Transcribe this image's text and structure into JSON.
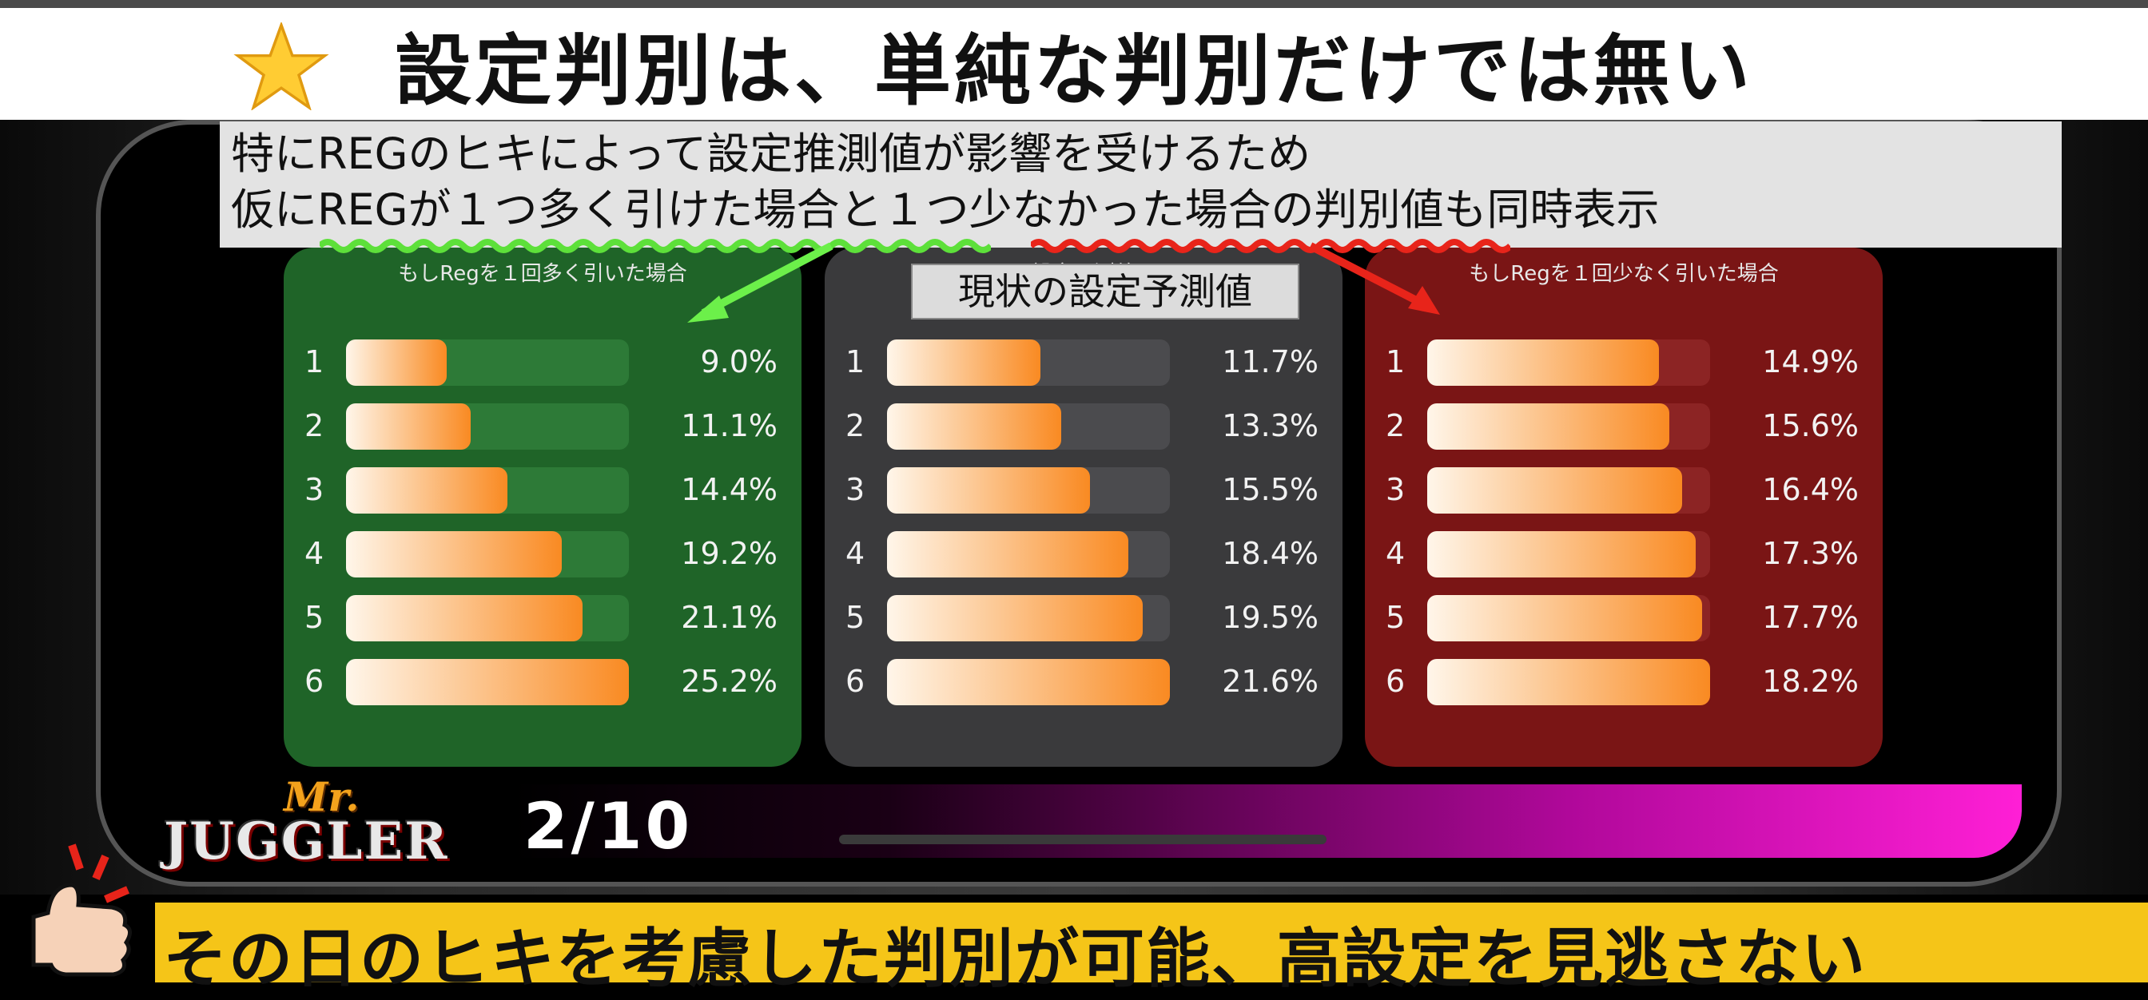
{
  "header": {
    "title": "設定判別は、単純な判別だけでは無い",
    "icon": "star-icon"
  },
  "note": {
    "line1": "特にREGのヒキによって設定推測値が影響を受けるため",
    "line2": "仮にREGが１つ多く引けた場合と１つ少なかった場合の判別値も同時表示"
  },
  "callout": "現状の設定予測値",
  "panels": [
    {
      "title": "もしRegを１回多く引いた場合",
      "rows": [
        {
          "level": "1",
          "pct": "9.0%",
          "value": 9.0
        },
        {
          "level": "2",
          "pct": "11.1%",
          "value": 11.1
        },
        {
          "level": "3",
          "pct": "14.4%",
          "value": 14.4
        },
        {
          "level": "4",
          "pct": "19.2%",
          "value": 19.2
        },
        {
          "level": "5",
          "pct": "21.1%",
          "value": 21.1
        },
        {
          "level": "6",
          "pct": "25.2%",
          "value": 25.2
        }
      ]
    },
    {
      "title": "設定予測値",
      "rows": [
        {
          "level": "1",
          "pct": "11.7%",
          "value": 11.7
        },
        {
          "level": "2",
          "pct": "13.3%",
          "value": 13.3
        },
        {
          "level": "3",
          "pct": "15.5%",
          "value": 15.5
        },
        {
          "level": "4",
          "pct": "18.4%",
          "value": 18.4
        },
        {
          "level": "5",
          "pct": "19.5%",
          "value": 19.5
        },
        {
          "level": "6",
          "pct": "21.6%",
          "value": 21.6
        }
      ]
    },
    {
      "title": "もしRegを１回少なく引いた場合",
      "rows": [
        {
          "level": "1",
          "pct": "14.9%",
          "value": 14.9
        },
        {
          "level": "2",
          "pct": "15.6%",
          "value": 15.6
        },
        {
          "level": "3",
          "pct": "16.4%",
          "value": 16.4
        },
        {
          "level": "4",
          "pct": "17.3%",
          "value": 17.3
        },
        {
          "level": "5",
          "pct": "17.7%",
          "value": 17.7
        },
        {
          "level": "6",
          "pct": "18.2%",
          "value": 18.2
        }
      ]
    }
  ],
  "pager": "2/10",
  "logo": {
    "mr": "Mr.",
    "main": "JUGGLER"
  },
  "footer": "その日のヒキを考慮した判別が可能、高設定を見逃さない",
  "colors": {
    "green_panel": "#1f6428",
    "gray_panel": "#3a3a3c",
    "red_panel": "#7a1515",
    "bar": "#f98a22",
    "footer_bg": "#f5c518"
  }
}
